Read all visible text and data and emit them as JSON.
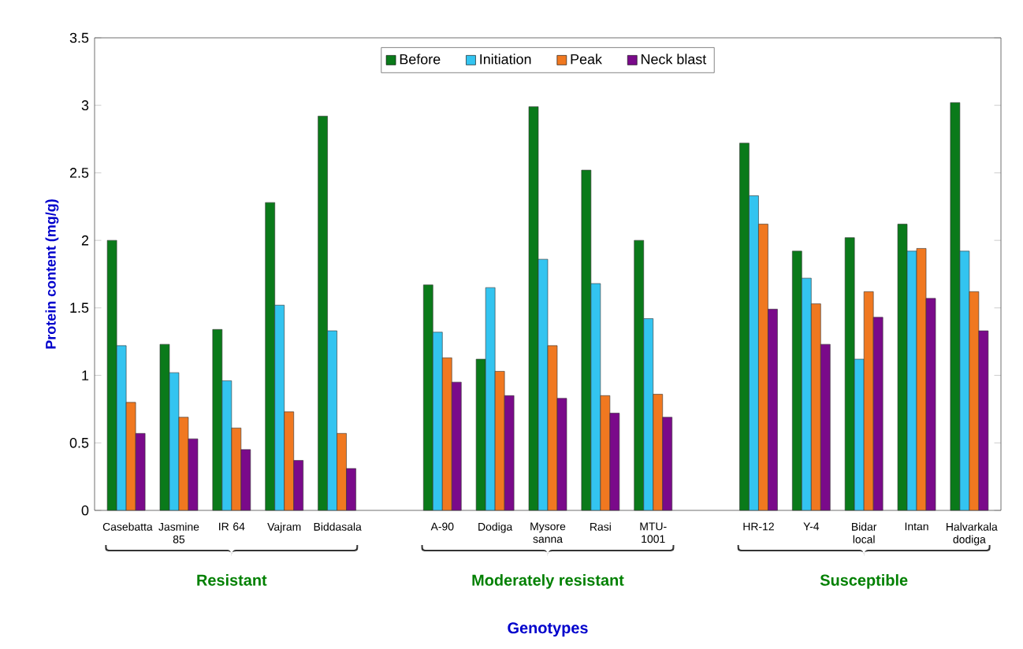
{
  "chart_data": {
    "type": "bar",
    "xlabel": "Genotypes",
    "ylabel": "Protein content (mg/g)",
    "categories": [
      "Casebatta",
      "Jasmine 85",
      "IR 64",
      "Vajram",
      "Biddasala",
      null,
      "A-90",
      "Dodiga",
      "Mysore sanna",
      "Rasi",
      "MTU-1001",
      null,
      "HR-12",
      "Y-4",
      "Bidar local",
      "Intan",
      "Halvarkala dodiga"
    ],
    "series": [
      {
        "name": "Before",
        "color": "#0a7a1a",
        "values": [
          2.0,
          1.23,
          1.34,
          2.28,
          2.92,
          null,
          1.67,
          1.12,
          2.99,
          2.52,
          2.0,
          null,
          2.72,
          1.92,
          2.02,
          2.12,
          3.02
        ]
      },
      {
        "name": "Initiation",
        "color": "#33c4f0",
        "values": [
          1.22,
          1.02,
          0.96,
          1.52,
          1.33,
          null,
          1.32,
          1.65,
          1.86,
          1.68,
          1.42,
          null,
          2.33,
          1.72,
          1.12,
          1.92,
          1.92
        ]
      },
      {
        "name": "Peak",
        "color": "#f07820",
        "values": [
          0.8,
          0.69,
          0.61,
          0.73,
          0.57,
          null,
          1.13,
          1.03,
          1.22,
          0.85,
          0.86,
          null,
          2.12,
          1.53,
          1.62,
          1.94,
          1.62
        ]
      },
      {
        "name": "Neck blast",
        "color": "#7a0a8a",
        "values": [
          0.57,
          0.53,
          0.45,
          0.37,
          0.31,
          null,
          0.95,
          0.85,
          0.83,
          0.72,
          0.69,
          null,
          1.49,
          1.23,
          1.43,
          1.57,
          1.33
        ]
      }
    ],
    "annotations": [
      "Resistant",
      "Moderately resistant",
      "Susceptible"
    ],
    "ylim": [
      0,
      3.5
    ],
    "yticks": [
      0,
      0.5,
      1,
      1.5,
      2,
      2.5,
      3,
      3.5
    ],
    "legend": "top",
    "grid": false
  }
}
